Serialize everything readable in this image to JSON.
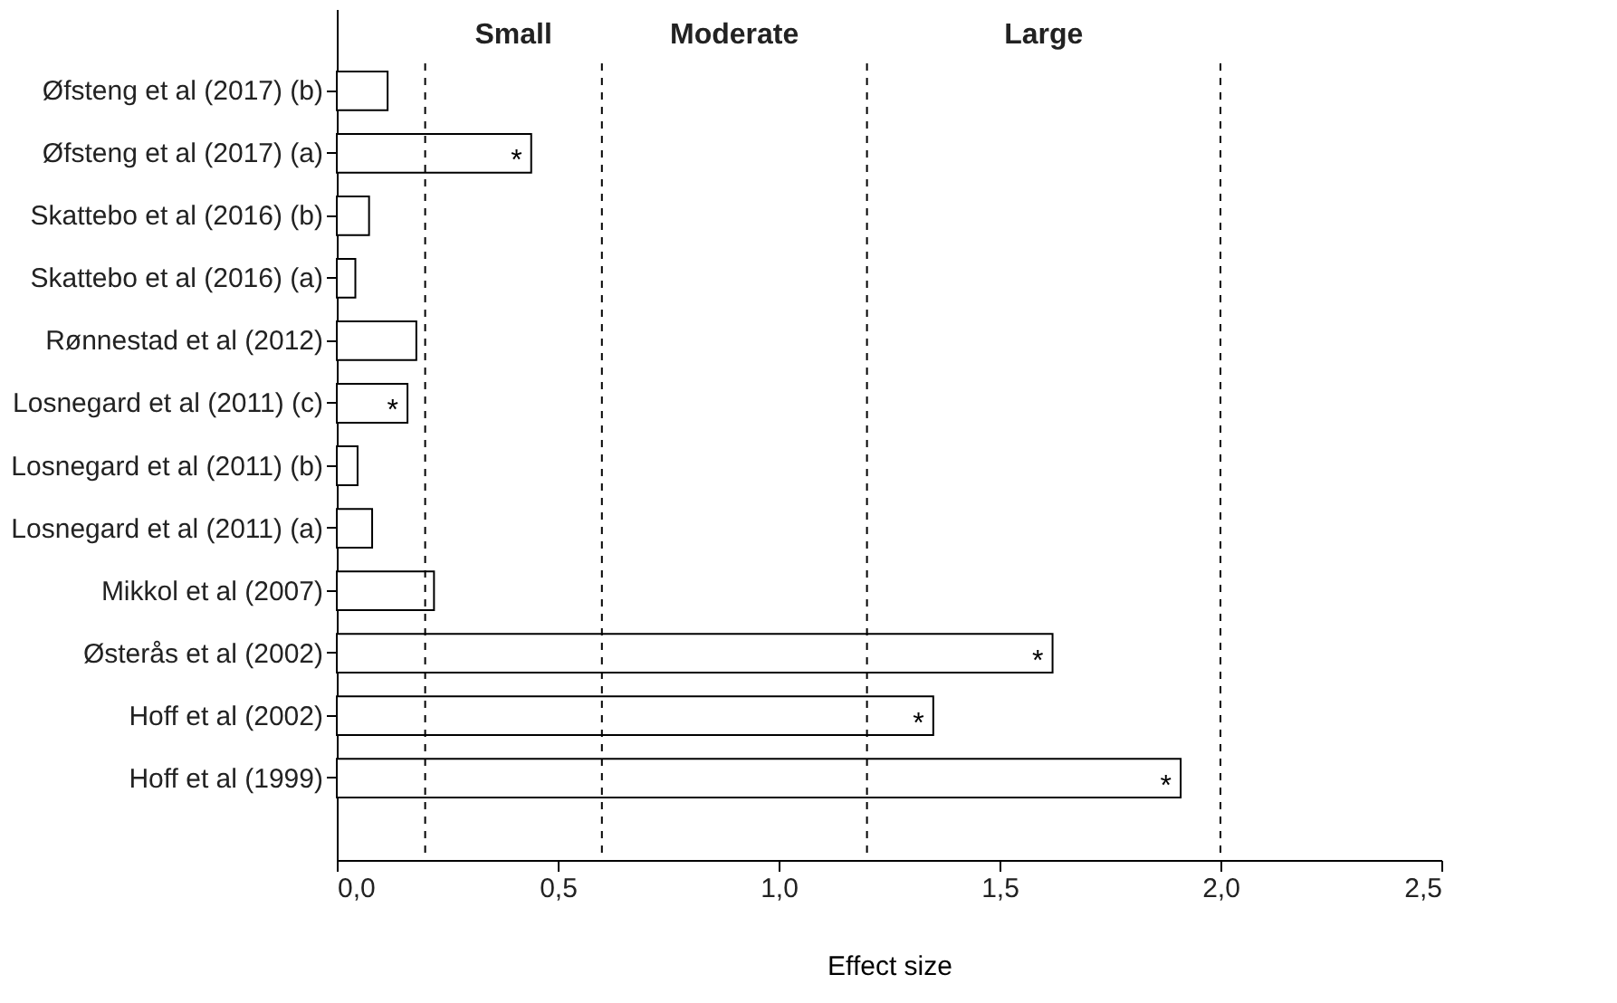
{
  "chart_data": {
    "type": "bar",
    "orientation": "horizontal",
    "xlabel": "Effect size",
    "categories": [
      "Øfsteng et al (2017) (b)",
      "Øfsteng et al (2017) (a)",
      "Skattebo et al (2016) (b)",
      "Skattebo et al (2016) (a)",
      "Rønnestad et al (2012)",
      "Losnegard et al (2011) (c)",
      "Losnegard et al (2011) (b)",
      "Losnegard et al (2011) (a)",
      "Mikkol et al (2007)",
      "Østerås et al (2002)",
      "Hoff et al (2002)",
      "Hoff et al (1999)"
    ],
    "values": [
      0.115,
      0.44,
      0.073,
      0.042,
      0.18,
      0.16,
      0.047,
      0.08,
      0.22,
      1.62,
      1.35,
      1.91
    ],
    "value_labels": [
      null,
      "*",
      null,
      null,
      null,
      "*",
      null,
      null,
      null,
      "*",
      "*",
      "*"
    ],
    "color": "#ffffff",
    "xlim": [
      0,
      2.5
    ],
    "xticks": [
      {
        "value": 0,
        "label": "0,0"
      },
      {
        "value": 0.5,
        "label": "0,5"
      },
      {
        "value": 1,
        "label": "1,0"
      },
      {
        "value": 1.5,
        "label": "1,5"
      },
      {
        "value": 2,
        "label": "2,0"
      },
      {
        "value": 2.5,
        "label": "2,5"
      }
    ],
    "ref_lines": [
      {
        "axis": "x",
        "value": 0.2,
        "line_style": "dashed"
      },
      {
        "axis": "x",
        "value": 0.6,
        "line_style": "dashed"
      },
      {
        "axis": "x",
        "value": 1.2,
        "line_style": "dashed"
      },
      {
        "axis": "x",
        "value": 2.0,
        "line_style": "dashed"
      }
    ],
    "annotations": [
      "Small",
      "Moderate",
      "Large"
    ],
    "grid": false
  }
}
